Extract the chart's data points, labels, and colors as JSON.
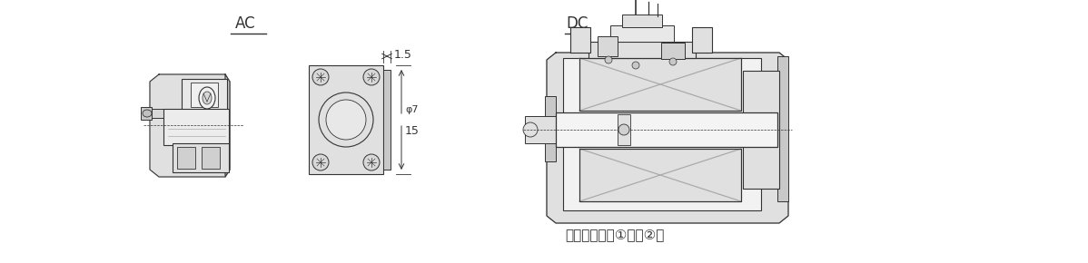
{
  "bg_color": "#ffffff",
  "ac_label": "AC",
  "dc_label": "DC",
  "note_text": "注）極性あり①＋、②－",
  "dim_15_label": "1.5",
  "dim_15v_label": "15",
  "dim_phi_label": "φ7",
  "line_color": "#333333",
  "gray_fill": "#c8c8c8",
  "light_gray": "#e0e0e0",
  "mid_gray": "#aaaaaa",
  "label_fontsize": 12,
  "dim_fontsize": 9,
  "note_fontsize": 11
}
